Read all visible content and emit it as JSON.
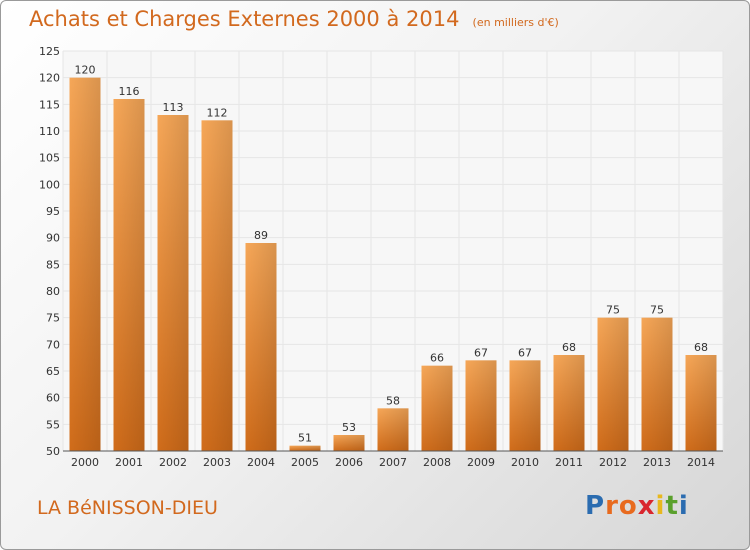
{
  "header": {
    "title": "Achats et Charges Externes 2000 à 2014",
    "unit": "(en milliers d'€)"
  },
  "footer": {
    "commune": "LA BéNISSON-DIEU",
    "logo_letters": [
      "P",
      "r",
      "o",
      "x",
      "i",
      "t",
      "i"
    ],
    "logo_colors": [
      "#2b6cb0",
      "#e86a1e",
      "#e86a1e",
      "#d9262e",
      "#e8b81e",
      "#5aa02c",
      "#2b6cb0"
    ]
  },
  "colors": {
    "title": "#d2691e",
    "bar_light": "#f6a758",
    "bar_dark": "#d06c1a",
    "axis_text": "#333333",
    "grid": "#e6e6e6"
  },
  "chart_data": {
    "type": "bar",
    "title": "Achats et Charges Externes 2000 à 2014",
    "subtitle": "(en milliers d'€)",
    "xlabel": "",
    "ylabel": "",
    "categories": [
      "2000",
      "2001",
      "2002",
      "2003",
      "2004",
      "2005",
      "2006",
      "2007",
      "2008",
      "2009",
      "2010",
      "2011",
      "2012",
      "2013",
      "2014"
    ],
    "values": [
      120,
      116,
      113,
      112,
      89,
      51,
      53,
      58,
      66,
      67,
      67,
      68,
      75,
      75,
      68
    ],
    "ylim": [
      50,
      125
    ],
    "yticks": [
      50,
      55,
      60,
      65,
      70,
      75,
      80,
      85,
      90,
      95,
      100,
      105,
      110,
      115,
      120,
      125
    ],
    "grid": true,
    "data_labels": true
  }
}
